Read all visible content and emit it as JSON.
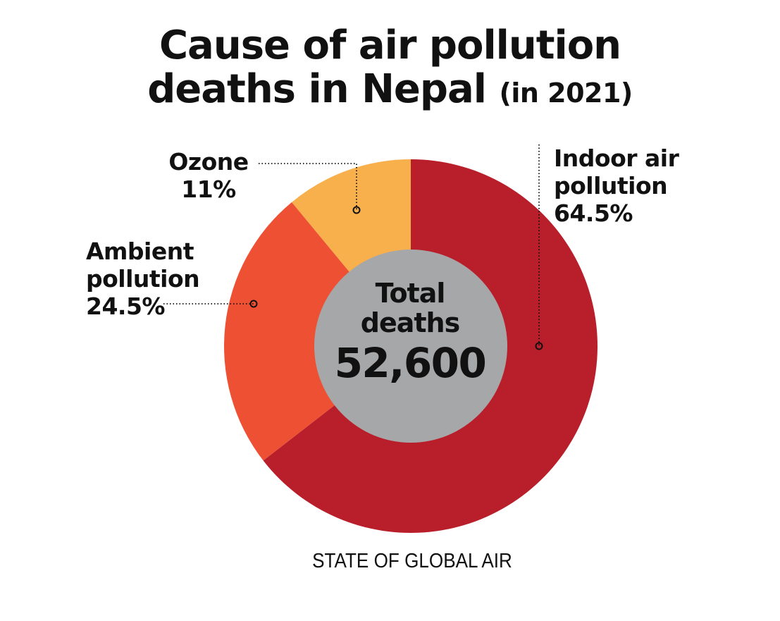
{
  "title": {
    "line1": "Cause of air pollution",
    "line2": "deaths in Nepal",
    "suffix": "(in 2021)"
  },
  "center": {
    "line1": "Total",
    "line2": "deaths",
    "value": "52,600"
  },
  "source": "STATE OF GLOBAL AIR",
  "colors": {
    "indoor": "#b91f2b",
    "ambient": "#ee5033",
    "ozone": "#f8b04c",
    "center": "#a6a7a9"
  },
  "chart_data": {
    "type": "pie",
    "variant": "donut",
    "total": 52600,
    "series": [
      {
        "name": "Indoor air pollution",
        "value": 64.5,
        "label": [
          "Indoor air",
          "pollution",
          "64.5%"
        ],
        "color": "#b91f2b"
      },
      {
        "name": "Ambient pollution",
        "value": 24.5,
        "label": [
          "Ambient",
          "pollution",
          "24.5%"
        ],
        "color": "#ee5033"
      },
      {
        "name": "Ozone",
        "value": 11,
        "label": [
          "Ozone",
          "11%"
        ],
        "color": "#f8b04c"
      }
    ]
  }
}
